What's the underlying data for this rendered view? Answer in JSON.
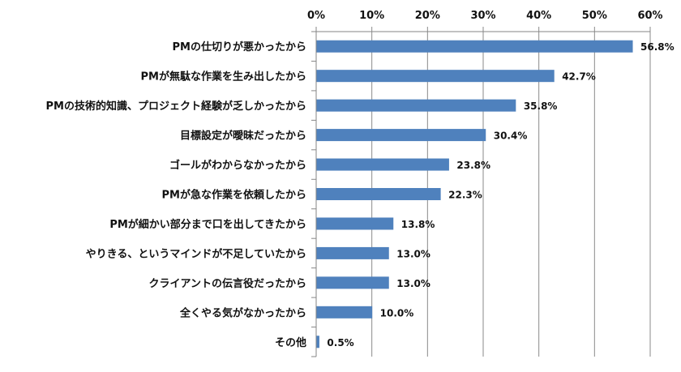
{
  "chart_data": {
    "type": "bar",
    "orientation": "horizontal",
    "title": "",
    "xlabel": "",
    "ylabel": "",
    "xlim": [
      0,
      60
    ],
    "x_ticks": [
      "0%",
      "10%",
      "20%",
      "30%",
      "40%",
      "50%",
      "60%"
    ],
    "x_axis_position": "top",
    "grid": true,
    "bar_color": "#4f81bd",
    "categories": [
      "PMの仕切りが悪かったから",
      "PMが無駄な作業を生み出したから",
      "PMの技術的知識、プロジェクト経験が乏しかったから",
      "目標設定が曖昧だったから",
      "ゴールがわからなかったから",
      "PMが急な作業を依頼したから",
      "PMが細かい部分まで口を出してきたから",
      "やりきる、というマインドが不足していたから",
      "クライアントの伝言役だったから",
      "全くやる気がなかったから",
      "その他"
    ],
    "values": [
      56.8,
      42.7,
      35.8,
      30.4,
      23.8,
      22.3,
      13.8,
      13.0,
      13.0,
      10.0,
      0.5
    ],
    "data_labels": [
      "56.8%",
      "42.7%",
      "35.8%",
      "30.4%",
      "23.8%",
      "22.3%",
      "13.8%",
      "13.0%",
      "13.0%",
      "10.0%",
      "0.5%"
    ]
  }
}
